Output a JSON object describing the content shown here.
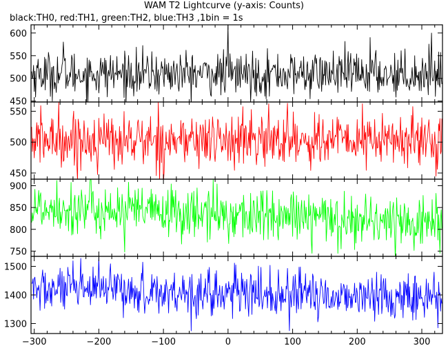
{
  "chart_data": {
    "type": "line",
    "title": "WAM T2 Lightcurve (y-axis: Counts)",
    "subtitle": "black:TH0, red:TH1, green:TH2, blue:TH3 ,1bin = 1s",
    "xlabel": "",
    "ylabel": "",
    "xlim": [
      -305,
      332
    ],
    "x_ticks": [
      -300,
      -200,
      -100,
      0,
      100,
      200,
      300
    ],
    "bin_width_s": 1,
    "grid": false,
    "panels": [
      {
        "channel": "TH0",
        "color": "#000000",
        "ylim": [
          448,
          618
        ],
        "y_ticks": [
          450,
          500,
          550,
          600
        ],
        "level_start": 510,
        "level_end": 510,
        "noise_sd": 24,
        "notable": [
          {
            "x": 0,
            "y": 618
          },
          {
            "x": -255,
            "y": 580
          },
          {
            "x": 220,
            "y": 590
          },
          {
            "x": 315,
            "y": 600
          }
        ]
      },
      {
        "channel": "TH1",
        "color": "#ff0000",
        "ylim": [
          440,
          565
        ],
        "y_ticks": [
          450,
          500,
          550
        ],
        "level_start": 503,
        "level_end": 503,
        "noise_sd": 22,
        "notable": [
          {
            "x": -262,
            "y": 565
          },
          {
            "x": 92,
            "y": 563
          },
          {
            "x": 322,
            "y": 445
          }
        ]
      },
      {
        "channel": "TH2",
        "color": "#00ff00",
        "ylim": [
          738,
          915
        ],
        "y_ticks": [
          750,
          800,
          850,
          900
        ],
        "level_start": 850,
        "level_end": 815,
        "noise_sd": 30,
        "notable": [
          {
            "x": -265,
            "y": 912
          },
          {
            "x": -160,
            "y": 748
          },
          {
            "x": 130,
            "y": 745
          }
        ]
      },
      {
        "channel": "TH3",
        "color": "#0000ff",
        "ylim": [
          1265,
          1535
        ],
        "y_ticks": [
          1300,
          1400,
          1500
        ],
        "level_start": 1420,
        "level_end": 1390,
        "noise_sd": 40,
        "notable": [
          {
            "x": -200,
            "y": 1530
          },
          {
            "x": 95,
            "y": 1275
          },
          {
            "x": 325,
            "y": 1285
          }
        ]
      }
    ]
  }
}
